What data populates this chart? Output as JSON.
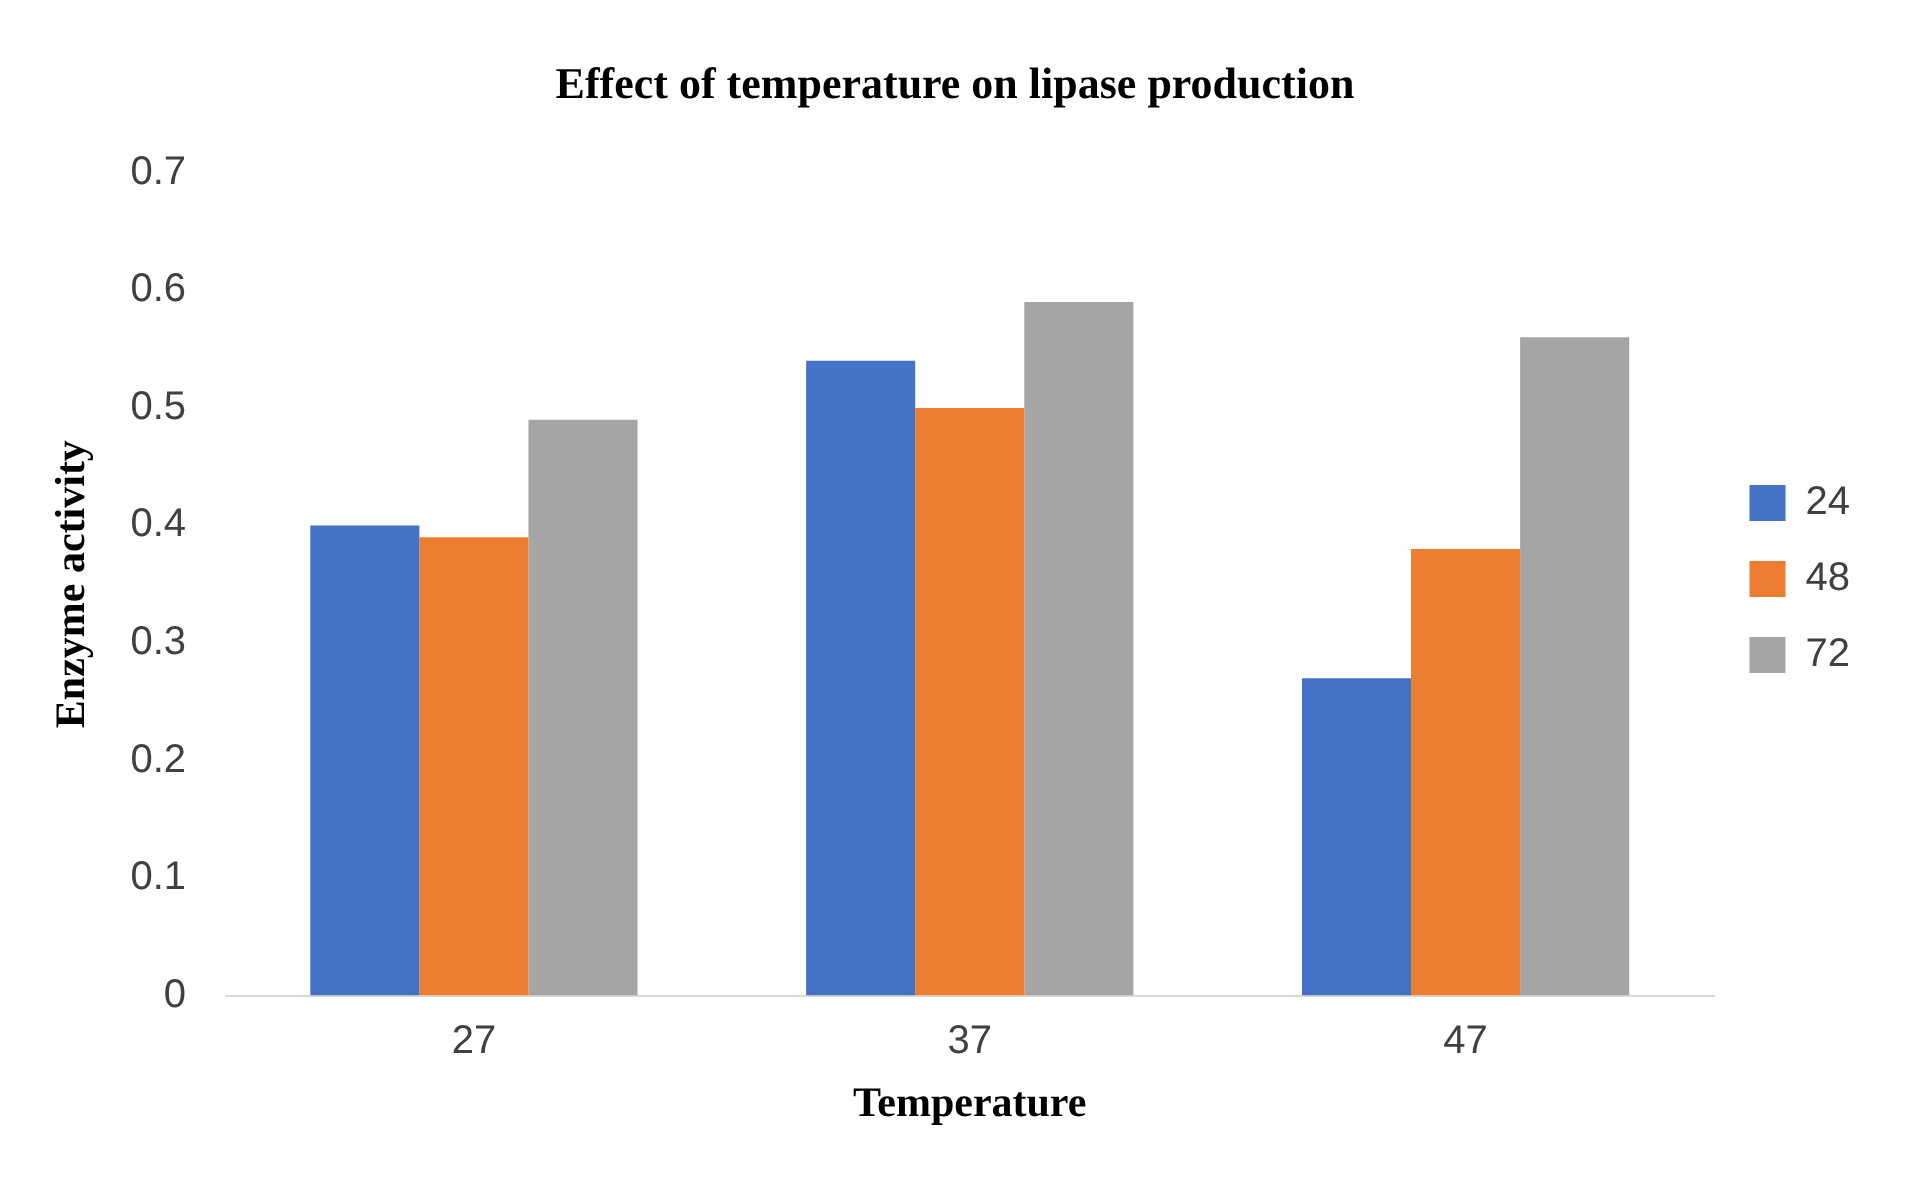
{
  "chart_data": {
    "type": "bar",
    "title": "Effect of temperature on lipase production",
    "xlabel": "Temperature",
    "ylabel": "Enzyme activity",
    "categories": [
      "27",
      "37",
      "47"
    ],
    "series": [
      {
        "name": "24",
        "color": "#4472c4",
        "values": [
          0.4,
          0.54,
          0.27
        ]
      },
      {
        "name": "48",
        "color": "#ed7d31",
        "values": [
          0.39,
          0.5,
          0.38
        ]
      },
      {
        "name": "72",
        "color": "#a5a5a5",
        "values": [
          0.49,
          0.59,
          0.56
        ]
      }
    ],
    "ylim": [
      0,
      0.7
    ],
    "yticks": [
      0,
      0.1,
      0.2,
      0.3,
      0.4,
      0.5,
      0.6,
      0.7
    ],
    "grid": false,
    "legend": "right"
  }
}
